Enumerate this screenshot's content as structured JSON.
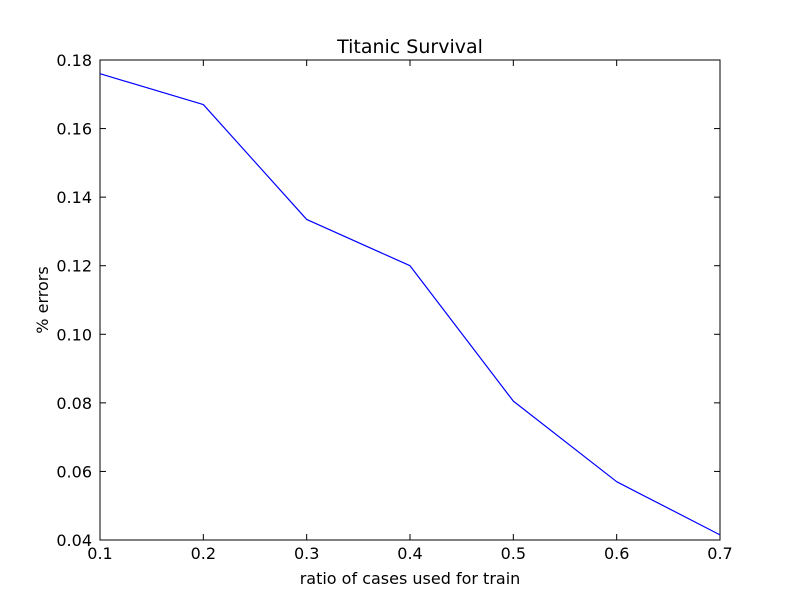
{
  "chart_data": {
    "type": "line",
    "title": "Titanic Survival",
    "xlabel": "ratio of cases used for train",
    "ylabel": "% errors",
    "xlim": [
      0.1,
      0.7
    ],
    "ylim": [
      0.04,
      0.18
    ],
    "x_ticks": [
      "0.1",
      "0.2",
      "0.3",
      "0.4",
      "0.5",
      "0.6",
      "0.7"
    ],
    "y_ticks": [
      "0.04",
      "0.06",
      "0.08",
      "0.10",
      "0.12",
      "0.14",
      "0.16",
      "0.18"
    ],
    "grid": false,
    "series": [
      {
        "color": "#0000ff",
        "x": [
          0.1,
          0.2,
          0.3,
          0.4,
          0.5,
          0.6,
          0.7
        ],
        "y": [
          0.176,
          0.167,
          0.1335,
          0.12,
          0.0805,
          0.057,
          0.0415
        ]
      }
    ]
  }
}
